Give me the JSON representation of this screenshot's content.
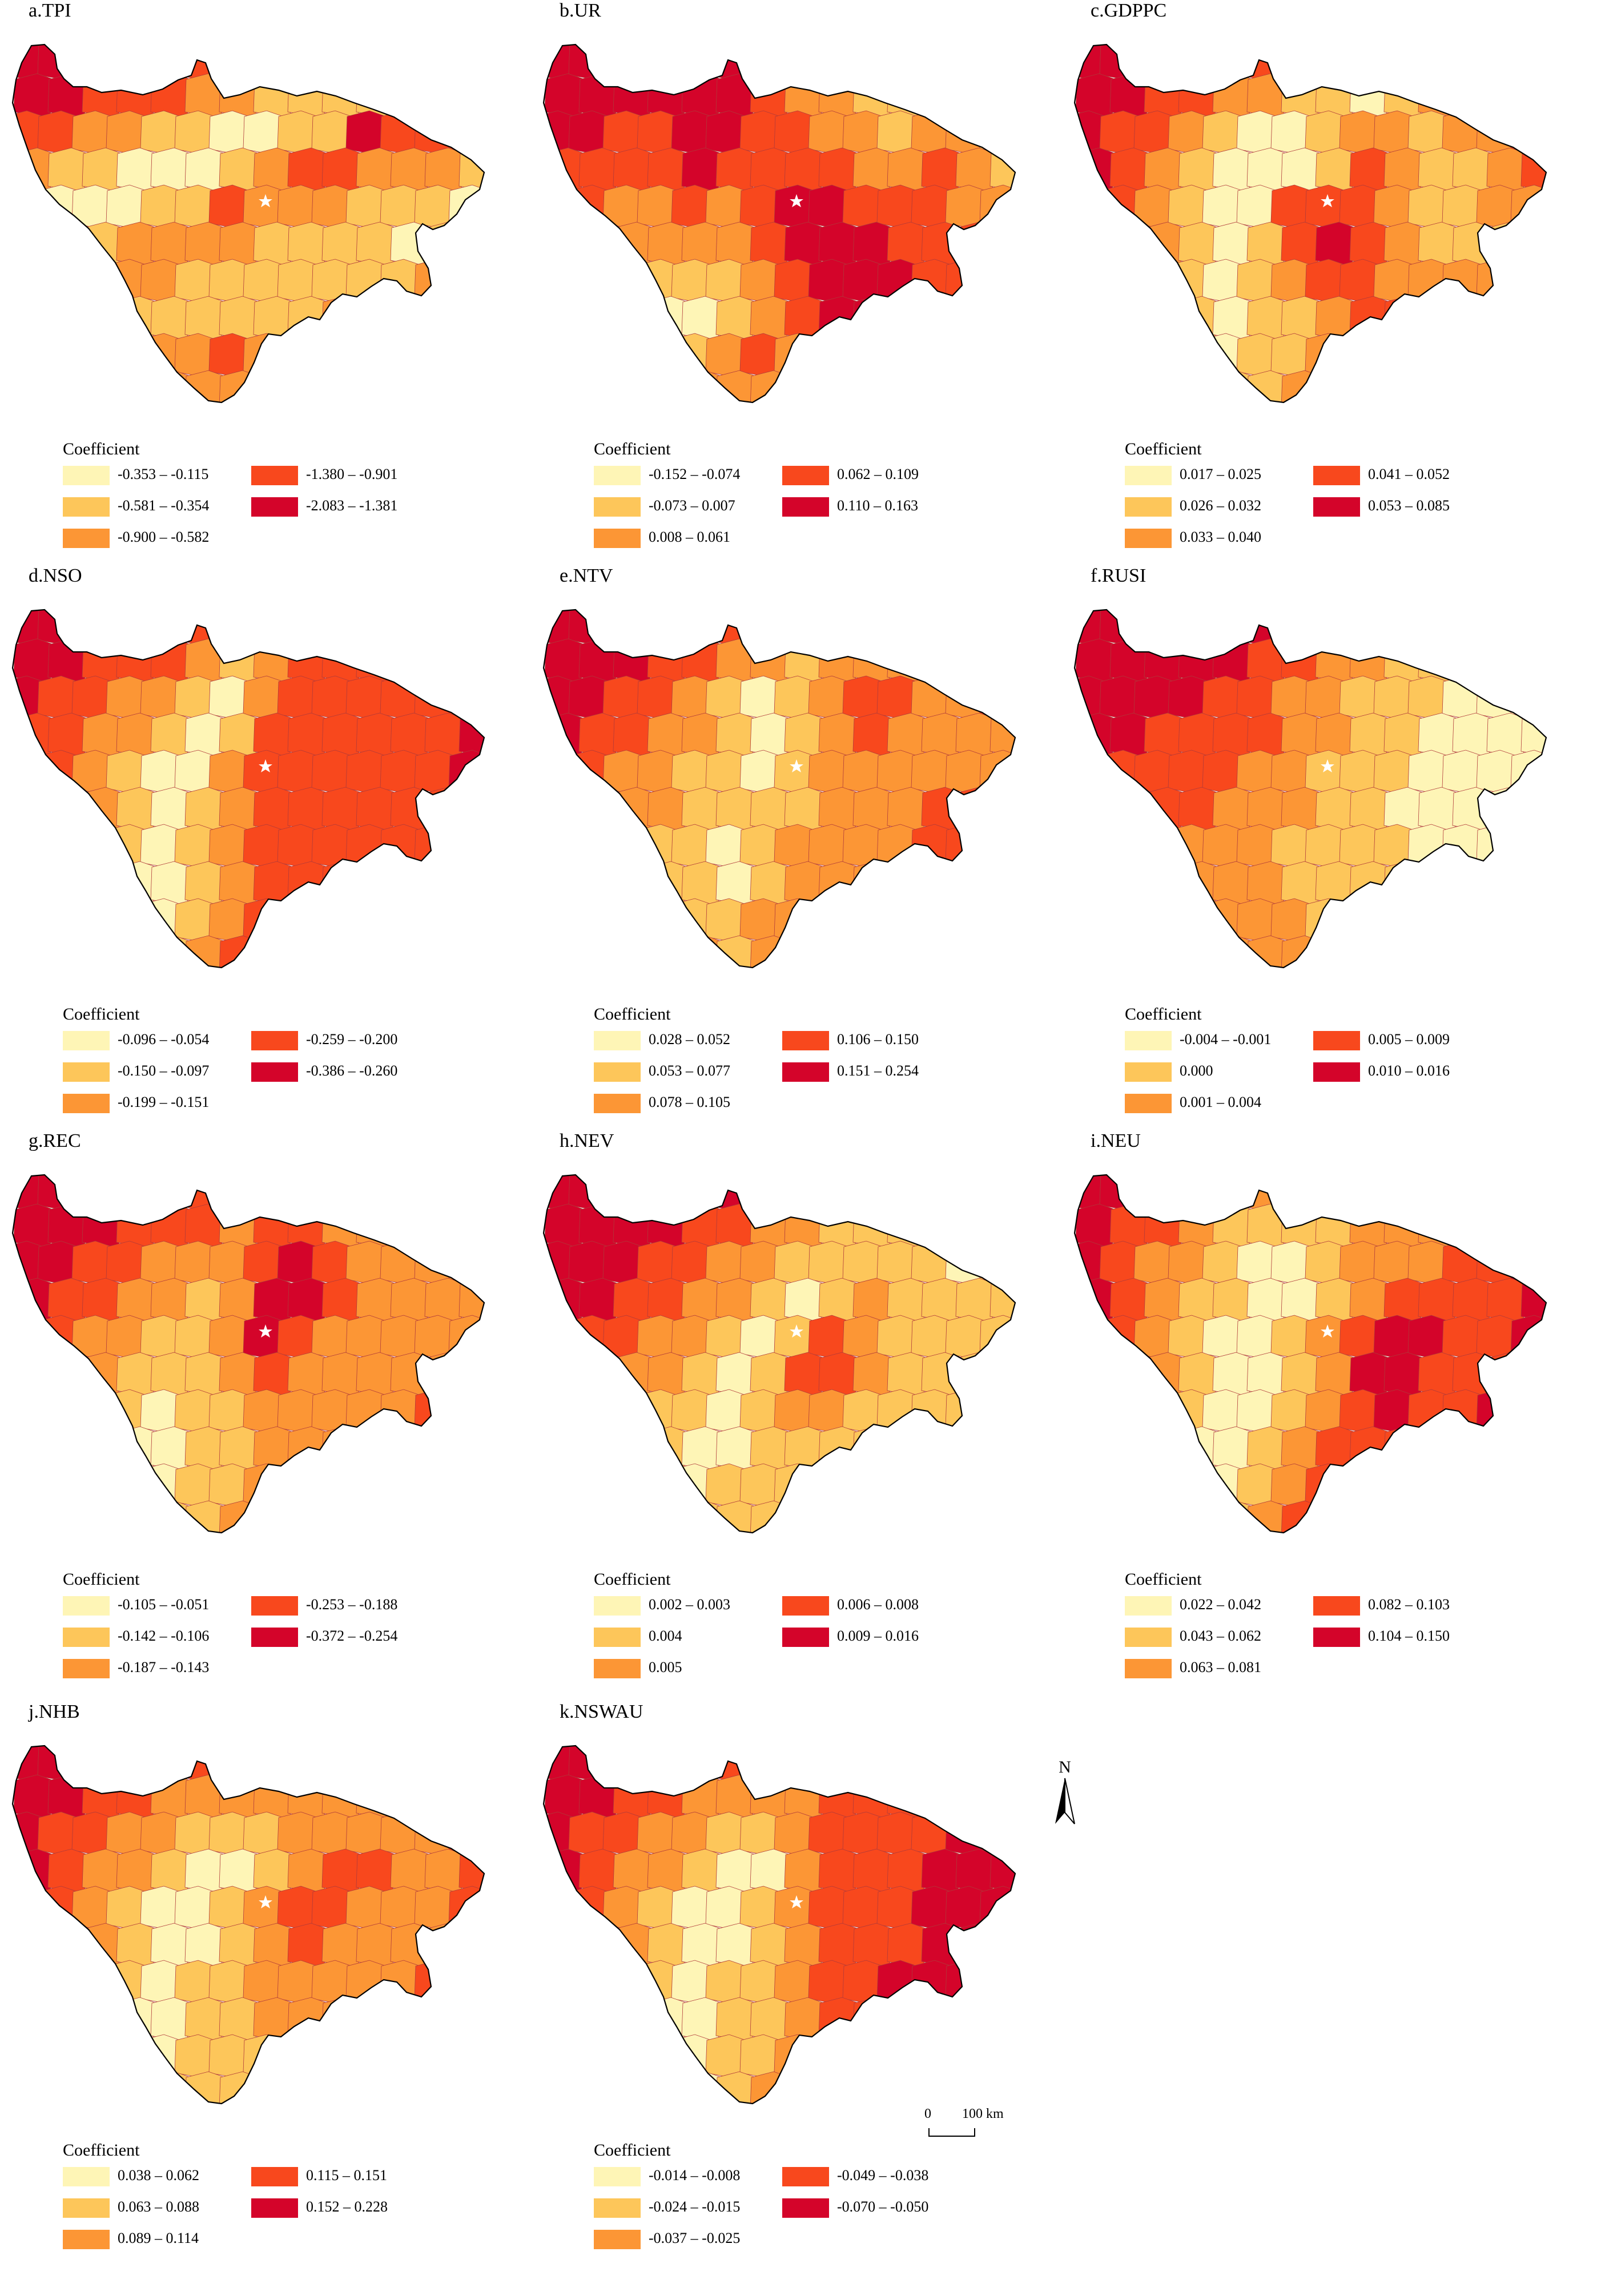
{
  "palette": [
    "#fef5b6",
    "#fdc65a",
    "#fc9635",
    "#f8481d",
    "#d4042a"
  ],
  "panels": [
    {
      "title": "a.TPI",
      "legend_title": "Coefficient",
      "classes": [
        "-0.353 – -0.115",
        "-0.581 – -0.354",
        "-0.900 – -0.582",
        "-1.380 – -0.901",
        "-2.083 – -1.381"
      ],
      "pattern": [
        4,
        4,
        4,
        4,
        4,
        3,
        3,
        3,
        3,
        2,
        2,
        1,
        1,
        1,
        4,
        4,
        3,
        3,
        3,
        2,
        2,
        1,
        1,
        1,
        1,
        2,
        4,
        4,
        3,
        3,
        2,
        2,
        1,
        1,
        0,
        0,
        1,
        1,
        4,
        3,
        3,
        3,
        2,
        1,
        1,
        0,
        0,
        0,
        1,
        2,
        3,
        3,
        2,
        2,
        2,
        1,
        0,
        0,
        0,
        0,
        1,
        1,
        3,
        2,
        2,
        2,
        1,
        1,
        1,
        0,
        0,
        0,
        1,
        2,
        2,
        2,
        2,
        1,
        1,
        1,
        1,
        0,
        1,
        1,
        1,
        2,
        3,
        2,
        2,
        1,
        1,
        1,
        1,
        1,
        1,
        1,
        2,
        2,
        3,
        2,
        1,
        1,
        1,
        1,
        1,
        1,
        1,
        2,
        2,
        1,
        3,
        2,
        2,
        1,
        1,
        2,
        2,
        2,
        3,
        2,
        1,
        1,
        3,
        3,
        2,
        2,
        2,
        2,
        2,
        2,
        2,
        2,
        2,
        2
      ]
    },
    {
      "title": "b.UR",
      "legend_title": "Coefficient",
      "classes": [
        "-0.152 – -0.074",
        "-0.073 – 0.007",
        "0.008 – 0.061",
        "0.062 – 0.109",
        "0.110 – 0.163"
      ],
      "pattern": [
        4,
        4,
        4,
        4,
        4,
        4,
        4,
        3,
        2,
        2,
        2,
        1,
        1,
        1,
        4,
        4,
        4,
        4,
        4,
        4,
        3,
        2,
        2,
        1,
        1,
        1,
        1,
        2,
        4,
        4,
        3,
        3,
        4,
        4,
        3,
        3,
        2,
        2,
        1,
        2,
        2,
        1,
        3,
        3,
        3,
        3,
        4,
        3,
        3,
        3,
        3,
        2,
        2,
        3,
        2,
        1,
        3,
        3,
        2,
        2,
        3,
        2,
        3,
        4,
        4,
        3,
        3,
        3,
        2,
        2,
        3,
        2,
        2,
        2,
        2,
        2,
        3,
        4,
        4,
        4,
        3,
        3,
        3,
        2,
        2,
        2,
        1,
        1,
        1,
        1,
        2,
        3,
        4,
        4,
        4,
        3,
        3,
        2,
        2,
        1,
        0,
        0,
        0,
        1,
        2,
        3,
        4,
        4,
        2,
        2,
        2,
        1,
        0,
        0,
        0,
        0,
        1,
        2,
        3,
        2,
        3,
        3,
        2,
        1,
        1,
        0,
        0,
        0,
        1,
        2,
        2,
        2,
        2,
        2
      ]
    },
    {
      "title": "c.GDPPC",
      "legend_title": "Coefficient",
      "classes": [
        "0.017 – 0.025",
        "0.026 – 0.032",
        "0.033 – 0.040",
        "0.041 – 0.052",
        "0.053 – 0.085"
      ],
      "pattern": [
        4,
        4,
        4,
        4,
        3,
        3,
        2,
        2,
        1,
        1,
        1,
        2,
        2,
        3,
        4,
        4,
        3,
        3,
        2,
        2,
        1,
        1,
        0,
        1,
        2,
        1,
        2,
        3,
        4,
        3,
        3,
        2,
        1,
        0,
        0,
        1,
        2,
        2,
        1,
        2,
        2,
        3,
        4,
        3,
        2,
        1,
        0,
        0,
        0,
        1,
        3,
        2,
        1,
        1,
        2,
        3,
        4,
        3,
        2,
        1,
        0,
        0,
        3,
        3,
        3,
        2,
        1,
        1,
        2,
        2,
        3,
        3,
        2,
        1,
        0,
        1,
        3,
        4,
        3,
        2,
        1,
        1,
        1,
        2,
        2,
        2,
        2,
        1,
        0,
        1,
        2,
        3,
        3,
        2,
        2,
        2,
        2,
        2,
        2,
        2,
        1,
        1,
        0,
        1,
        1,
        2,
        3,
        3,
        3,
        3,
        2,
        2,
        2,
        1,
        1,
        0,
        0,
        1,
        1,
        2,
        3,
        3,
        3,
        2,
        2,
        1,
        1,
        1,
        0,
        0,
        1,
        1,
        2,
        2
      ]
    },
    {
      "title": "d.NSO",
      "legend_title": "Coefficient",
      "classes": [
        "-0.096 – -0.054",
        "-0.150 – -0.097",
        "-0.199 – -0.151",
        "-0.259 – -0.200",
        "-0.386 – -0.260"
      ],
      "pattern": [
        4,
        4,
        4,
        4,
        4,
        3,
        3,
        2,
        2,
        2,
        3,
        3,
        3,
        4,
        4,
        4,
        3,
        3,
        3,
        2,
        1,
        2,
        3,
        3,
        3,
        3,
        3,
        4,
        4,
        3,
        3,
        2,
        2,
        1,
        0,
        2,
        3,
        3,
        3,
        3,
        3,
        3,
        3,
        3,
        2,
        2,
        1,
        0,
        1,
        3,
        3,
        3,
        3,
        3,
        3,
        4,
        3,
        3,
        2,
        1,
        0,
        0,
        2,
        3,
        3,
        3,
        3,
        3,
        3,
        4,
        3,
        2,
        2,
        1,
        0,
        1,
        2,
        3,
        3,
        3,
        3,
        3,
        3,
        4,
        2,
        2,
        1,
        1,
        0,
        1,
        2,
        3,
        3,
        3,
        3,
        3,
        3,
        4,
        2,
        2,
        1,
        0,
        0,
        1,
        2,
        3,
        3,
        3,
        3,
        3,
        3,
        4,
        1,
        1,
        1,
        0,
        0,
        1,
        2,
        3,
        3,
        4,
        3,
        3,
        3,
        3,
        1,
        1,
        0,
        0,
        1,
        2,
        3,
        4,
        4,
        4,
        3,
        3
      ]
    },
    {
      "title": "e.NTV",
      "legend_title": "Coefficient",
      "classes": [
        "0.028 – 0.052",
        "0.053 – 0.077",
        "0.078 – 0.105",
        "0.106 – 0.150",
        "0.151 – 0.254"
      ],
      "pattern": [
        4,
        4,
        4,
        4,
        4,
        3,
        3,
        2,
        2,
        2,
        2,
        2,
        2,
        3,
        4,
        4,
        4,
        3,
        3,
        2,
        2,
        1,
        2,
        2,
        2,
        2,
        2,
        3,
        4,
        4,
        3,
        3,
        2,
        1,
        0,
        1,
        2,
        3,
        3,
        2,
        2,
        3,
        4,
        3,
        3,
        2,
        2,
        1,
        0,
        1,
        2,
        3,
        2,
        2,
        2,
        2,
        4,
        3,
        2,
        2,
        1,
        1,
        0,
        1,
        2,
        2,
        2,
        2,
        2,
        2,
        4,
        3,
        2,
        2,
        1,
        1,
        1,
        1,
        2,
        2,
        2,
        3,
        3,
        2,
        3,
        3,
        2,
        1,
        1,
        0,
        1,
        2,
        2,
        2,
        2,
        3,
        3,
        3,
        3,
        2,
        2,
        1,
        1,
        0,
        1,
        2,
        2,
        2,
        2,
        2,
        3,
        4,
        3,
        2,
        2,
        2,
        1,
        1,
        2,
        2,
        2,
        2,
        2,
        2,
        3,
        4,
        3,
        3,
        2,
        2,
        2,
        1,
        2,
        2,
        3,
        3,
        2,
        2
      ]
    },
    {
      "title": "f.RUSI",
      "legend_title": "Coefficient",
      "classes": [
        "-0.004 – -0.001",
        "0.000",
        "0.001 – 0.004",
        "0.005 – 0.009",
        "0.010 – 0.016"
      ],
      "pattern": [
        4,
        4,
        4,
        4,
        4,
        4,
        3,
        3,
        2,
        2,
        1,
        1,
        1,
        0,
        4,
        4,
        4,
        4,
        4,
        3,
        3,
        2,
        2,
        1,
        1,
        1,
        0,
        0,
        4,
        4,
        4,
        4,
        3,
        3,
        2,
        2,
        1,
        1,
        1,
        0,
        0,
        0,
        4,
        4,
        3,
        3,
        3,
        3,
        2,
        2,
        1,
        1,
        0,
        0,
        0,
        0,
        4,
        3,
        3,
        3,
        3,
        2,
        2,
        1,
        1,
        1,
        0,
        0,
        0,
        0,
        3,
        3,
        3,
        3,
        2,
        2,
        2,
        1,
        1,
        0,
        0,
        0,
        0,
        0,
        3,
        3,
        3,
        2,
        2,
        2,
        1,
        1,
        1,
        1,
        0,
        0,
        0,
        0,
        3,
        3,
        2,
        2,
        2,
        2,
        1,
        1,
        1,
        1,
        0,
        0,
        0,
        0,
        3,
        2,
        2,
        2,
        2,
        2,
        2,
        1,
        1,
        1,
        1,
        0,
        0,
        0,
        2,
        2,
        2,
        2,
        2,
        2,
        2,
        2,
        1,
        1,
        1,
        1,
        0,
        0
      ]
    },
    {
      "title": "g.REC",
      "legend_title": "Coefficient",
      "classes": [
        "-0.105 – -0.051",
        "-0.142 – -0.106",
        "-0.187 – -0.143",
        "-0.253 – -0.188",
        "-0.372 – -0.254"
      ],
      "pattern": [
        4,
        4,
        4,
        4,
        4,
        3,
        3,
        3,
        3,
        2,
        2,
        2,
        2,
        3,
        4,
        4,
        4,
        3,
        3,
        3,
        2,
        3,
        3,
        2,
        2,
        2,
        2,
        3,
        4,
        4,
        3,
        3,
        2,
        2,
        2,
        3,
        4,
        3,
        2,
        2,
        2,
        2,
        4,
        3,
        3,
        2,
        2,
        1,
        2,
        4,
        4,
        3,
        2,
        2,
        2,
        2,
        4,
        3,
        2,
        2,
        1,
        1,
        2,
        4,
        3,
        2,
        2,
        2,
        2,
        2,
        4,
        3,
        2,
        1,
        1,
        1,
        2,
        3,
        2,
        2,
        2,
        2,
        2,
        3,
        3,
        3,
        2,
        1,
        0,
        1,
        1,
        2,
        2,
        2,
        2,
        2,
        3,
        3,
        3,
        2,
        1,
        0,
        0,
        1,
        1,
        2,
        2,
        2,
        2,
        2,
        3,
        2,
        2,
        1,
        0,
        0,
        0,
        1,
        1,
        2,
        2,
        2,
        2,
        2,
        2,
        2,
        2,
        1,
        0,
        0,
        1,
        1,
        2,
        2,
        2,
        2,
        2,
        2
      ]
    },
    {
      "title": "h.NEV",
      "legend_title": "Coefficient",
      "classes": [
        "0.002 – 0.003",
        "0.004",
        "0.005",
        "0.006 – 0.008",
        "0.009 – 0.016"
      ],
      "pattern": [
        4,
        4,
        4,
        4,
        4,
        4,
        3,
        3,
        2,
        2,
        2,
        2,
        1,
        1,
        4,
        4,
        4,
        4,
        3,
        3,
        2,
        2,
        1,
        1,
        1,
        1,
        1,
        1,
        4,
        4,
        4,
        3,
        3,
        2,
        2,
        1,
        1,
        1,
        1,
        1,
        0,
        1,
        4,
        4,
        3,
        3,
        2,
        2,
        1,
        0,
        1,
        2,
        1,
        1,
        1,
        1,
        4,
        3,
        3,
        2,
        2,
        1,
        0,
        1,
        3,
        2,
        1,
        1,
        1,
        1,
        3,
        3,
        2,
        2,
        1,
        0,
        1,
        3,
        3,
        2,
        1,
        1,
        1,
        1,
        3,
        2,
        2,
        1,
        1,
        0,
        1,
        2,
        2,
        1,
        1,
        1,
        1,
        2,
        2,
        2,
        1,
        1,
        0,
        0,
        1,
        1,
        1,
        1,
        1,
        1,
        1,
        2,
        2,
        1,
        1,
        0,
        0,
        1,
        1,
        1,
        1,
        1,
        1,
        1,
        2,
        2,
        2,
        1,
        0,
        0,
        1,
        1,
        1,
        1,
        1,
        1,
        1,
        2,
        2,
        2
      ]
    },
    {
      "title": "i.NEU",
      "legend_title": "Coefficient",
      "classes": [
        "0.022 – 0.042",
        "0.043 – 0.062",
        "0.063 – 0.081",
        "0.082 – 0.103",
        "0.104 – 0.150"
      ],
      "pattern": [
        4,
        4,
        3,
        3,
        2,
        2,
        2,
        2,
        3,
        3,
        2,
        2,
        3,
        4,
        4,
        3,
        3,
        2,
        1,
        1,
        1,
        1,
        2,
        2,
        2,
        2,
        3,
        4,
        4,
        3,
        2,
        2,
        1,
        0,
        0,
        1,
        2,
        2,
        2,
        3,
        3,
        4,
        4,
        3,
        2,
        1,
        1,
        0,
        0,
        1,
        2,
        3,
        3,
        3,
        3,
        4,
        3,
        3,
        2,
        1,
        0,
        0,
        1,
        2,
        3,
        4,
        4,
        3,
        3,
        4,
        3,
        2,
        2,
        1,
        0,
        0,
        1,
        2,
        4,
        4,
        3,
        3,
        3,
        4,
        3,
        2,
        2,
        1,
        0,
        0,
        1,
        2,
        3,
        4,
        3,
        3,
        4,
        4,
        2,
        2,
        1,
        0,
        0,
        1,
        2,
        3,
        3,
        3,
        3,
        4,
        4,
        4,
        2,
        1,
        1,
        0,
        0,
        1,
        2,
        3,
        3,
        3,
        4,
        4,
        4,
        3,
        1,
        1,
        0,
        0,
        1,
        2,
        3,
        4,
        4,
        4,
        3,
        3
      ]
    },
    {
      "title": "j.NHB",
      "legend_title": "Coefficient",
      "classes": [
        "0.038 – 0.062",
        "0.063 – 0.088",
        "0.089 – 0.114",
        "0.115 – 0.151",
        "0.152 – 0.228"
      ],
      "pattern": [
        4,
        4,
        4,
        4,
        3,
        3,
        3,
        3,
        3,
        2,
        2,
        2,
        2,
        3,
        4,
        4,
        3,
        3,
        2,
        2,
        2,
        2,
        2,
        2,
        2,
        2,
        2,
        3,
        4,
        3,
        3,
        2,
        2,
        1,
        1,
        1,
        2,
        2,
        2,
        2,
        2,
        3,
        4,
        3,
        2,
        2,
        1,
        0,
        0,
        1,
        2,
        3,
        3,
        2,
        2,
        3,
        3,
        3,
        2,
        1,
        0,
        0,
        1,
        2,
        3,
        3,
        2,
        2,
        2,
        3,
        3,
        2,
        2,
        1,
        0,
        0,
        1,
        2,
        3,
        2,
        2,
        2,
        2,
        3,
        3,
        2,
        1,
        1,
        0,
        1,
        1,
        2,
        2,
        2,
        2,
        2,
        3,
        3,
        2,
        2,
        1,
        0,
        0,
        1,
        1,
        2,
        2,
        2,
        2,
        3,
        3,
        4,
        2,
        1,
        1,
        0,
        0,
        1,
        1,
        1,
        2,
        2,
        2,
        2,
        3,
        4,
        1,
        1,
        0,
        0,
        1,
        1,
        1,
        2,
        2,
        2,
        2,
        2
      ]
    },
    {
      "title": "k.NSWAU",
      "legend_title": "Coefficient",
      "classes": [
        "-0.014 – -0.008",
        "-0.024 – -0.015",
        "-0.037 – -0.025",
        "-0.049 – -0.038",
        "-0.070 – -0.050"
      ],
      "pattern": [
        4,
        4,
        4,
        4,
        3,
        3,
        3,
        3,
        3,
        3,
        3,
        3,
        3,
        4,
        4,
        4,
        3,
        3,
        2,
        2,
        2,
        2,
        3,
        3,
        3,
        3,
        4,
        4,
        4,
        3,
        3,
        2,
        2,
        1,
        1,
        2,
        3,
        3,
        3,
        3,
        4,
        4,
        4,
        3,
        2,
        2,
        1,
        0,
        0,
        2,
        3,
        3,
        3,
        4,
        4,
        4,
        3,
        3,
        2,
        1,
        0,
        0,
        1,
        2,
        3,
        3,
        3,
        4,
        4,
        4,
        3,
        2,
        2,
        1,
        0,
        0,
        1,
        2,
        3,
        3,
        3,
        4,
        4,
        4,
        3,
        2,
        1,
        1,
        0,
        1,
        1,
        2,
        3,
        3,
        4,
        4,
        4,
        4,
        3,
        2,
        1,
        0,
        0,
        1,
        1,
        2,
        3,
        3,
        4,
        4,
        4,
        4,
        2,
        2,
        1,
        0,
        0,
        1,
        1,
        2,
        3,
        3,
        3,
        4,
        4,
        4,
        2,
        1,
        1,
        0,
        0,
        1,
        2,
        3,
        3,
        3,
        4,
        4
      ]
    }
  ],
  "north_label": "N",
  "scale_zero": "0",
  "scale_label": "100 km"
}
